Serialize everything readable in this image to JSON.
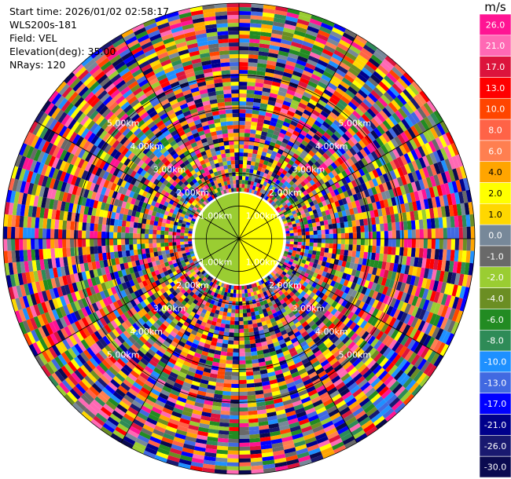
{
  "header": {
    "start_time": "Start time: 2026/01/02 02:58:17",
    "instrument": "WLS200s-181",
    "field": "Field: VEL",
    "elevation": "Elevation(deg): 35.00",
    "nrays": "NRays: 120"
  },
  "colorbar": {
    "unit": "m/s",
    "ticks": [
      "26.0",
      "21.0",
      "17.0",
      "13.0",
      "10.0",
      "8.0",
      "6.0",
      "4.0",
      "2.0",
      "1.0",
      "0.0",
      "-1.0",
      "-2.0",
      "-4.0",
      "-6.0",
      "-8.0",
      "-10.0",
      "-13.0",
      "-17.0",
      "-21.0",
      "-26.0",
      "-30.0"
    ],
    "colors": [
      "#ff1493",
      "#ff69b4",
      "#dc143c",
      "#ff0000",
      "#ff4500",
      "#ff6347",
      "#ff7f50",
      "#ffa500",
      "#ffff00",
      "#ffd700",
      "#778899",
      "#696969",
      "#9acd32",
      "#6b8e23",
      "#228b22",
      "#2e8b57",
      "#1e90ff",
      "#4169e1",
      "#0000ff",
      "#00008b",
      "#191970",
      "#0a0a50"
    ]
  },
  "chart_data": {
    "type": "heatmap",
    "title": "",
    "field": "VEL",
    "unit": "m/s",
    "elevation_deg": 35.0,
    "n_rays": 120,
    "range_rings_km": [
      1.0,
      2.0,
      3.0,
      4.0,
      5.0
    ],
    "range_ring_labels": [
      "1.00km",
      "2.00km",
      "3.00km",
      "4.00km",
      "5.00km"
    ],
    "max_range_km": 7.2,
    "spoke_interval_deg": 30,
    "color_scale_ticks": [
      26.0,
      21.0,
      17.0,
      13.0,
      10.0,
      8.0,
      6.0,
      4.0,
      2.0,
      1.0,
      0.0,
      -1.0,
      -2.0,
      -4.0,
      -6.0,
      -8.0,
      -10.0,
      -13.0,
      -17.0,
      -21.0,
      -26.0,
      -30.0
    ],
    "near_field": {
      "inner_radius_km": 1.4,
      "east_half_value_ms": 2.0,
      "west_half_value_ms": -2.0
    }
  }
}
